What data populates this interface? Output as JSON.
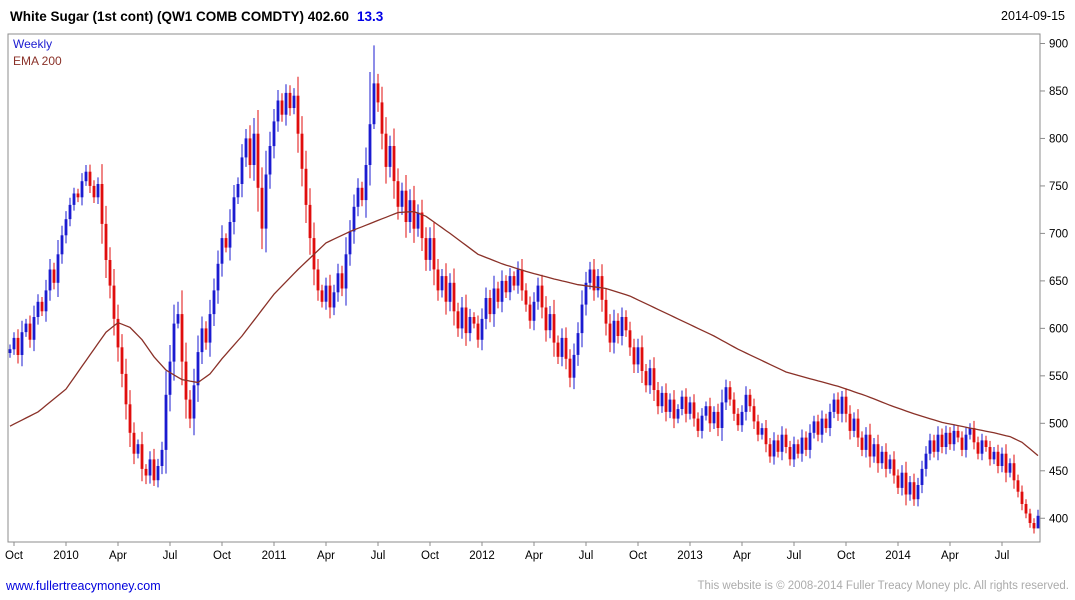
{
  "header": {
    "title": "White Sugar (1st cont) (QW1 COMB COMDTY) 402.60",
    "change": "13.3",
    "date": "2014-09-15"
  },
  "legend": {
    "weekly": "Weekly",
    "ema": "EMA 200"
  },
  "footer": {
    "link": "www.fullertreacymoney.com",
    "copyright": "This website is © 2008-2014 Fuller Treacy Money plc. All rights reserved."
  },
  "colors": {
    "up": "#1b1bd0",
    "down": "#e00d0d",
    "ema": "#8a3128",
    "accent": "#0000e6",
    "link": "#0000dd",
    "frame": "#8c8c8c",
    "text": "#000000",
    "footer_gray": "#ababab"
  },
  "chart_data": {
    "type": "candlestick",
    "title": "White Sugar (1st cont) (QW1 COMB COMDTY)",
    "timeframe": "Weekly",
    "last_price": 402.6,
    "change": 13.3,
    "date": "2014-09-15",
    "xlabel": "",
    "ylabel": "",
    "ylim": [
      375,
      910
    ],
    "grid": false,
    "legend_position": "top-left",
    "y_ticks": [
      400,
      450,
      500,
      550,
      600,
      650,
      700,
      750,
      800,
      850,
      900
    ],
    "x_ticks": [
      [
        1,
        "Oct"
      ],
      [
        14,
        "2010"
      ],
      [
        27,
        "Apr"
      ],
      [
        40,
        "Jul"
      ],
      [
        53,
        "Oct"
      ],
      [
        66,
        "2011"
      ],
      [
        79,
        "Apr"
      ],
      [
        92,
        "Jul"
      ],
      [
        105,
        "Oct"
      ],
      [
        118,
        "2012"
      ],
      [
        131,
        "Apr"
      ],
      [
        144,
        "Jul"
      ],
      [
        157,
        "Oct"
      ],
      [
        170,
        "2013"
      ],
      [
        183,
        "Apr"
      ],
      [
        196,
        "Jul"
      ],
      [
        209,
        "Oct"
      ],
      [
        222,
        "2014"
      ],
      [
        235,
        "Apr"
      ],
      [
        248,
        "Jul"
      ]
    ],
    "closes": [
      578,
      590,
      572,
      596,
      605,
      588,
      612,
      628,
      618,
      640,
      662,
      648,
      678,
      698,
      715,
      730,
      742,
      738,
      755,
      765,
      750,
      738,
      752,
      710,
      672,
      645,
      610,
      580,
      552,
      520,
      490,
      468,
      478,
      452,
      445,
      462,
      440,
      455,
      472,
      530,
      565,
      605,
      615,
      565,
      525,
      505,
      540,
      575,
      600,
      585,
      615,
      640,
      668,
      695,
      685,
      712,
      738,
      752,
      780,
      800,
      772,
      805,
      748,
      705,
      762,
      792,
      818,
      840,
      825,
      848,
      832,
      845,
      805,
      768,
      730,
      695,
      662,
      640,
      628,
      645,
      622,
      638,
      658,
      642,
      678,
      702,
      728,
      748,
      735,
      772,
      815,
      858,
      838,
      805,
      770,
      792,
      755,
      728,
      745,
      712,
      735,
      705,
      722,
      695,
      672,
      695,
      662,
      640,
      655,
      628,
      648,
      618,
      600,
      622,
      595,
      612,
      605,
      588,
      610,
      632,
      615,
      642,
      628,
      650,
      638,
      655,
      645,
      662,
      640,
      625,
      608,
      628,
      645,
      622,
      598,
      615,
      585,
      570,
      590,
      568,
      548,
      572,
      595,
      625,
      648,
      662,
      640,
      655,
      630,
      605,
      585,
      608,
      592,
      612,
      598,
      580,
      562,
      580,
      555,
      540,
      558,
      535,
      518,
      532,
      512,
      525,
      505,
      515,
      528,
      510,
      522,
      505,
      492,
      508,
      518,
      500,
      512,
      495,
      522,
      538,
      525,
      510,
      498,
      512,
      530,
      518,
      502,
      488,
      495,
      478,
      465,
      482,
      470,
      488,
      475,
      462,
      478,
      468,
      485,
      472,
      490,
      502,
      488,
      505,
      495,
      512,
      525,
      510,
      528,
      510,
      492,
      505,
      485,
      472,
      488,
      465,
      478,
      458,
      470,
      452,
      462,
      445,
      432,
      448,
      425,
      438,
      420,
      435,
      452,
      468,
      482,
      470,
      488,
      475,
      490,
      478,
      492,
      485,
      472,
      488,
      495,
      480,
      468,
      482,
      475,
      462,
      470,
      455,
      468,
      448,
      458,
      440,
      428,
      415,
      405,
      395,
      389.3,
      402.6
    ],
    "wick": {
      "base": 5,
      "factor": 0.5,
      "max": 25
    },
    "wick_overrides": {
      "19": [
        772,
        null
      ],
      "34": [
        null,
        436
      ],
      "36": [
        null,
        434
      ],
      "42": [
        628,
        null
      ],
      "69": [
        857,
        null
      ],
      "71": [
        853,
        null
      ],
      "90": [
        870,
        null
      ],
      "91": [
        898,
        810
      ],
      "145": [
        670,
        null
      ],
      "208": [
        534,
        null
      ],
      "226": [
        null,
        413
      ],
      "256": [
        null,
        384
      ],
      "257": [
        409,
        390
      ]
    },
    "ema_label": "EMA 200",
    "ema": [
      [
        0,
        497
      ],
      [
        7,
        512
      ],
      [
        14,
        536
      ],
      [
        20,
        572
      ],
      [
        24,
        596
      ],
      [
        27,
        606
      ],
      [
        30,
        601
      ],
      [
        33,
        588
      ],
      [
        36,
        570
      ],
      [
        39,
        556
      ],
      [
        43,
        546
      ],
      [
        47,
        543
      ],
      [
        50,
        552
      ],
      [
        53,
        568
      ],
      [
        58,
        592
      ],
      [
        62,
        614
      ],
      [
        66,
        636
      ],
      [
        72,
        662
      ],
      [
        79,
        690
      ],
      [
        85,
        702
      ],
      [
        91,
        712
      ],
      [
        97,
        722
      ],
      [
        101,
        723
      ],
      [
        104,
        718
      ],
      [
        110,
        700
      ],
      [
        117,
        678
      ],
      [
        123,
        668
      ],
      [
        129,
        660
      ],
      [
        136,
        652
      ],
      [
        142,
        646
      ],
      [
        149,
        642
      ],
      [
        155,
        634
      ],
      [
        162,
        620
      ],
      [
        169,
        606
      ],
      [
        176,
        592
      ],
      [
        182,
        578
      ],
      [
        188,
        566
      ],
      [
        194,
        554
      ],
      [
        200,
        547
      ],
      [
        207,
        539
      ],
      [
        214,
        529
      ],
      [
        220,
        519
      ],
      [
        226,
        510
      ],
      [
        233,
        501
      ],
      [
        240,
        495
      ],
      [
        246,
        490
      ],
      [
        250,
        486
      ],
      [
        253,
        480
      ],
      [
        257,
        466
      ]
    ]
  }
}
